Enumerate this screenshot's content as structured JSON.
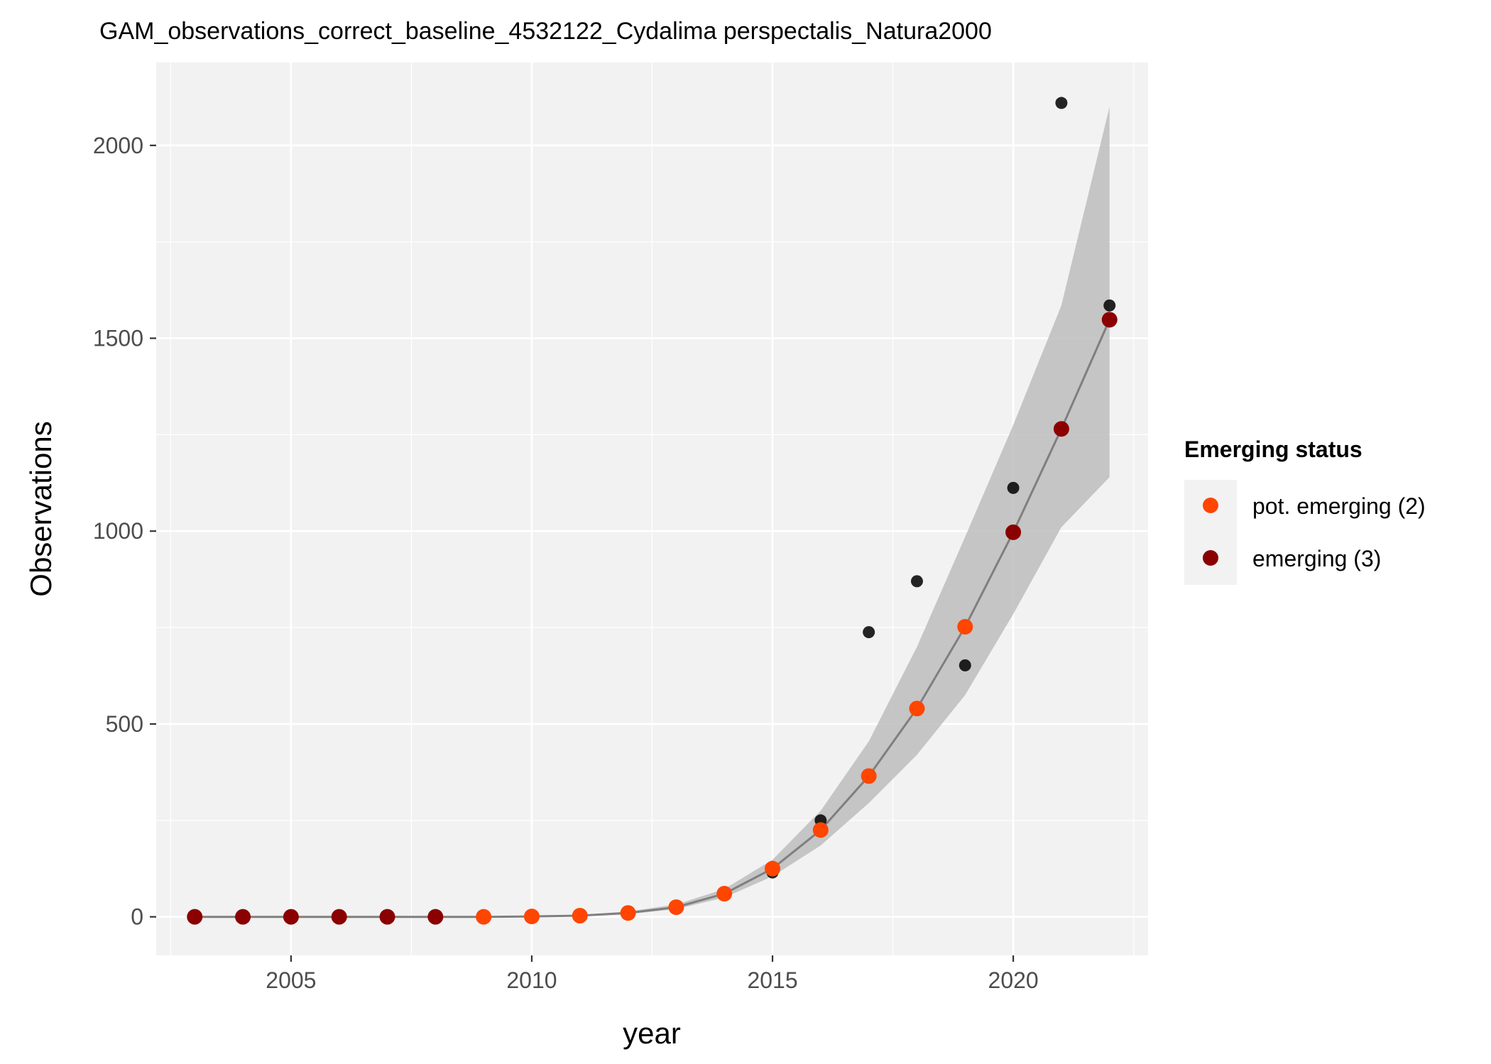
{
  "chart_data": {
    "type": "scatter",
    "title": "GAM_observations_correct_baseline_4532122_Cydalima perspectalis_Natura2000",
    "xlabel": "year",
    "ylabel": "Observations",
    "xlim": [
      2002.2,
      2022.8
    ],
    "ylim": [
      -100,
      2215
    ],
    "x_ticks": [
      2005,
      2010,
      2015,
      2020
    ],
    "x_tick_labels": [
      "2005",
      "2010",
      "2015",
      "2020"
    ],
    "y_ticks": [
      0,
      500,
      1000,
      1500,
      2000
    ],
    "y_tick_labels": [
      "0",
      "500",
      "1000",
      "1500",
      "2000"
    ],
    "grid": true,
    "legend": {
      "title": "Emerging status",
      "position": "right",
      "entries": [
        {
          "label": "pot. emerging (2)",
          "color": "#FF4500"
        },
        {
          "label": "emerging (3)",
          "color": "#8B0000"
        }
      ]
    },
    "observed": {
      "color": "#000000",
      "points": [
        {
          "x": 2003,
          "y": 0
        },
        {
          "x": 2004,
          "y": 0
        },
        {
          "x": 2005,
          "y": 0
        },
        {
          "x": 2006,
          "y": 0
        },
        {
          "x": 2007,
          "y": 0
        },
        {
          "x": 2008,
          "y": 0
        },
        {
          "x": 2009,
          "y": 0
        },
        {
          "x": 2010,
          "y": 0
        },
        {
          "x": 2011,
          "y": 2
        },
        {
          "x": 2012,
          "y": 10
        },
        {
          "x": 2013,
          "y": 25
        },
        {
          "x": 2014,
          "y": 60
        },
        {
          "x": 2015,
          "y": 115
        },
        {
          "x": 2016,
          "y": 250
        },
        {
          "x": 2017,
          "y": 738
        },
        {
          "x": 2018,
          "y": 870
        },
        {
          "x": 2019,
          "y": 652
        },
        {
          "x": 2020,
          "y": 1112
        },
        {
          "x": 2021,
          "y": 2110
        },
        {
          "x": 2022,
          "y": 1585
        }
      ]
    },
    "fit": {
      "line_color": "#7f7f7f",
      "ribbon_color": "#bdbdbd",
      "points": [
        {
          "x": 2003,
          "y": 0,
          "lower": 0,
          "upper": 0,
          "status": "emerging (3)"
        },
        {
          "x": 2004,
          "y": 0,
          "lower": 0,
          "upper": 0,
          "status": "emerging (3)"
        },
        {
          "x": 2005,
          "y": 0,
          "lower": 0,
          "upper": 0,
          "status": "emerging (3)"
        },
        {
          "x": 2006,
          "y": 0,
          "lower": 0,
          "upper": 0,
          "status": "emerging (3)"
        },
        {
          "x": 2007,
          "y": 0,
          "lower": 0,
          "upper": 0,
          "status": "emerging (3)"
        },
        {
          "x": 2008,
          "y": 0,
          "lower": 0,
          "upper": 0,
          "status": "emerging (3)"
        },
        {
          "x": 2009,
          "y": 0,
          "lower": 0,
          "upper": 0,
          "status": "pot. emerging (2)"
        },
        {
          "x": 2010,
          "y": 1,
          "lower": 0,
          "upper": 2,
          "status": "pot. emerging (2)"
        },
        {
          "x": 2011,
          "y": 3,
          "lower": 2,
          "upper": 5,
          "status": "pot. emerging (2)"
        },
        {
          "x": 2012,
          "y": 10,
          "lower": 7,
          "upper": 14,
          "status": "pot. emerging (2)"
        },
        {
          "x": 2013,
          "y": 25,
          "lower": 20,
          "upper": 32,
          "status": "pot. emerging (2)"
        },
        {
          "x": 2014,
          "y": 60,
          "lower": 50,
          "upper": 72,
          "status": "pot. emerging (2)"
        },
        {
          "x": 2015,
          "y": 125,
          "lower": 105,
          "upper": 148,
          "status": "pot. emerging (2)"
        },
        {
          "x": 2016,
          "y": 225,
          "lower": 185,
          "upper": 275,
          "status": "pot. emerging (2)"
        },
        {
          "x": 2017,
          "y": 365,
          "lower": 295,
          "upper": 455,
          "status": "pot. emerging (2)"
        },
        {
          "x": 2018,
          "y": 540,
          "lower": 420,
          "upper": 700,
          "status": "pot. emerging (2)"
        },
        {
          "x": 2019,
          "y": 752,
          "lower": 575,
          "upper": 985,
          "status": "pot. emerging (2)"
        },
        {
          "x": 2020,
          "y": 997,
          "lower": 785,
          "upper": 1275,
          "status": "emerging (3)"
        },
        {
          "x": 2021,
          "y": 1265,
          "lower": 1010,
          "upper": 1585,
          "status": "emerging (3)"
        },
        {
          "x": 2022,
          "y": 1548,
          "lower": 1140,
          "upper": 2100,
          "status": "emerging (3)"
        }
      ]
    }
  }
}
